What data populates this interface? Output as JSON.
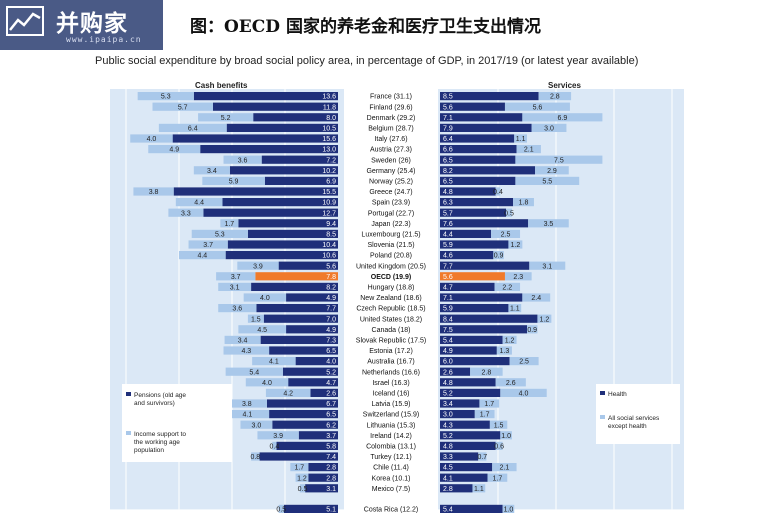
{
  "header": {
    "logo_text": "并购家",
    "logo_url": "www.ipaipa.cn",
    "title": "图：OECD 国家的养老金和医疗卫生支出情况"
  },
  "chart_data": {
    "type": "bar",
    "title": "Public social expenditure by broad social policy area, in percentage of GDP, in 2017/19 (or latest year available)",
    "left_panel_title": "Cash benefits",
    "right_panel_title": "Services",
    "categories": [
      "France (31.1)",
      "Finland (29.6)",
      "Denmark (29.2)",
      "Belgium (28.7)",
      "Italy (27.6)",
      "Austria (27.3)",
      "Sweden (26)",
      "Germany (25.4)",
      "Norway (25.2)",
      "Greece (24.7)",
      "Spain (23.9)",
      "Portugal (22.7)",
      "Japan (22.3)",
      "Luxembourg (21.5)",
      "Slovenia (21.5)",
      "Poland (20.8)",
      "United Kingdom (20.5)",
      "OECD (19.9)",
      "Hungary (18.8)",
      "New Zealand (18.6)",
      "Czech Republic (18.5)",
      "United States (18.2)",
      "Canada (18)",
      "Slovak Republic (17.5)",
      "Estonia (17.2)",
      "Australia (16.7)",
      "Netherlands (16.6)",
      "Israel (16.3)",
      "Iceland (16)",
      "Latvia (15.9)",
      "Switzerland (15.9)",
      "Lithuania (15.3)",
      "Ireland (14.2)",
      "Colombia (13.1)",
      "Turkey (12.1)",
      "Chile (11.4)",
      "Korea (10.1)",
      "Mexico (7.5)",
      "Costa Rica (12.2)"
    ],
    "highlight": "OECD (19.9)",
    "series": [
      {
        "name": "Pensions (old age and survivors)",
        "panel": "Cash benefits",
        "color": "#1f2f7a",
        "values": [
          13.6,
          11.8,
          8.0,
          10.5,
          15.6,
          13.0,
          7.2,
          10.2,
          6.9,
          15.5,
          10.9,
          12.7,
          9.4,
          8.5,
          10.4,
          10.6,
          5.6,
          7.8,
          8.2,
          4.9,
          7.7,
          7.0,
          4.9,
          7.3,
          6.5,
          4.0,
          5.2,
          4.7,
          2.6,
          6.7,
          6.5,
          6.2,
          3.7,
          5.8,
          7.4,
          2.8,
          2.8,
          3.1,
          5.1
        ]
      },
      {
        "name": "Income support to the working age population",
        "panel": "Cash benefits",
        "color": "#a9c8ea",
        "values": [
          5.3,
          5.7,
          5.2,
          6.4,
          4.0,
          4.9,
          3.6,
          3.4,
          5.9,
          3.8,
          4.4,
          3.3,
          1.7,
          5.3,
          3.7,
          4.4,
          3.9,
          3.7,
          3.1,
          4.0,
          3.6,
          1.5,
          4.5,
          3.4,
          4.3,
          4.1,
          5.4,
          4.0,
          4.2,
          3.8,
          4.1,
          3.0,
          3.9,
          0.4,
          0.8,
          1.7,
          1.2,
          0.5,
          0.5
        ]
      },
      {
        "name": "Health",
        "panel": "Services",
        "color": "#1f2f7a",
        "values": [
          8.5,
          5.6,
          7.1,
          7.9,
          6.4,
          6.6,
          6.5,
          8.2,
          6.5,
          4.8,
          6.3,
          5.7,
          7.6,
          4.4,
          5.9,
          4.6,
          7.7,
          5.6,
          4.7,
          7.1,
          5.9,
          8.4,
          7.5,
          5.4,
          4.9,
          6.0,
          2.6,
          4.8,
          5.2,
          3.4,
          3.0,
          4.3,
          5.2,
          4.8,
          3.3,
          4.5,
          4.1,
          2.8,
          5.4
        ]
      },
      {
        "name": "All social services except health",
        "panel": "Services",
        "color": "#a9c8ea",
        "values": [
          2.8,
          5.6,
          6.9,
          3.0,
          1.1,
          2.1,
          7.5,
          2.9,
          5.5,
          0.4,
          1.8,
          0.5,
          3.5,
          2.5,
          1.2,
          0.9,
          3.1,
          2.3,
          2.2,
          2.4,
          1.1,
          1.2,
          0.9,
          1.2,
          1.3,
          2.5,
          2.8,
          2.6,
          4.0,
          1.7,
          1.7,
          1.5,
          1.0,
          0.6,
          0.7,
          2.1,
          1.7,
          1.1,
          1.0
        ]
      }
    ],
    "legend_left": "Pensions (old age and survivors)",
    "legend_left_2": "Income support to the working age population",
    "legend_right": "Health",
    "legend_right_2": "All social services except health",
    "colors": {
      "dark": "#1f2f7a",
      "light": "#a9c8ea",
      "oecd": "#f07a2a",
      "panel_bg": "#dbe8f6",
      "grid": "#ffffff"
    }
  }
}
